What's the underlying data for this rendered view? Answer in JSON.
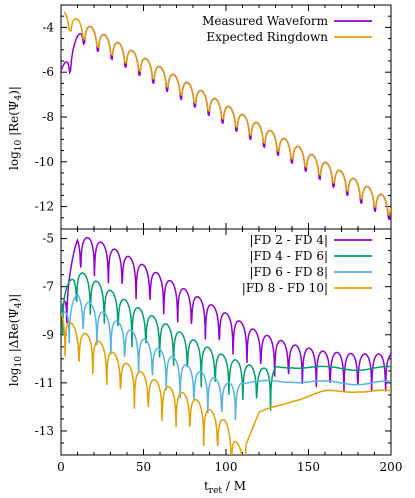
{
  "chart_data": [
    {
      "type": "line",
      "panel": "top",
      "ylabel": "log10 |Re(Ψ4)|",
      "xlim": [
        0,
        200
      ],
      "ylim": [
        -13,
        -3
      ],
      "yticks": [
        -12,
        -10,
        -8,
        -6,
        -4
      ],
      "xticks": [
        0,
        50,
        100,
        150,
        200
      ],
      "legend_position": "top-right",
      "series": [
        {
          "name": "Measured Waveform",
          "color": "#9400d3",
          "start": [
            0,
            -5.9
          ],
          "peak": [
            14,
            -3.8
          ],
          "decay_per_M": 0.0425,
          "half_period_M": 8.4,
          "first_zero_M": 5.5,
          "end": [
            200,
            -11.8
          ]
        },
        {
          "name": "Expected Ringdown",
          "color": "#e69f00",
          "start": [
            2,
            -3.0
          ],
          "decay_per_M": 0.0425,
          "half_period_M": 8.4,
          "first_zero_M": 5.5,
          "end": [
            200,
            -11.8
          ]
        }
      ]
    },
    {
      "type": "line",
      "panel": "bottom",
      "xlabel": "t_ret / M",
      "ylabel": "log10 |ΔRe(Ψ4)|",
      "xlim": [
        0,
        200
      ],
      "ylim": [
        -14,
        -4.6
      ],
      "yticks": [
        -13,
        -11,
        -9,
        -7,
        -5
      ],
      "xticks": [
        0,
        50,
        100,
        150,
        200
      ],
      "legend_position": "top-right",
      "series": [
        {
          "name": "|FD 2 - FD 4|",
          "color": "#9400d3",
          "points": [
            [
              0,
              -8.0
            ],
            [
              10,
              -4.9
            ],
            [
              20,
              -5.0
            ],
            [
              40,
              -5.7
            ],
            [
              60,
              -6.5
            ],
            [
              80,
              -7.3
            ],
            [
              100,
              -8.1
            ],
            [
              120,
              -8.9
            ],
            [
              140,
              -9.4
            ],
            [
              160,
              -9.7
            ],
            [
              180,
              -9.8
            ],
            [
              200,
              -9.8
            ]
          ]
        },
        {
          "name": "|FD 4 - FD 6|",
          "color": "#009e73",
          "points": [
            [
              0,
              -7.3
            ],
            [
              10,
              -6.3
            ],
            [
              20,
              -6.7
            ],
            [
              40,
              -7.6
            ],
            [
              60,
              -8.4
            ],
            [
              80,
              -9.2
            ],
            [
              100,
              -9.9
            ],
            [
              120,
              -10.4
            ],
            [
              140,
              -10.3
            ],
            [
              160,
              -10.4
            ],
            [
              180,
              -10.4
            ],
            [
              200,
              -10.4
            ]
          ]
        },
        {
          "name": "|FD 6 - FD 8|",
          "color": "#56b4e9",
          "points": [
            [
              0,
              -8.2
            ],
            [
              10,
              -7.3
            ],
            [
              20,
              -7.8
            ],
            [
              40,
              -8.7
            ],
            [
              60,
              -9.6
            ],
            [
              80,
              -10.4
            ],
            [
              100,
              -11.0
            ],
            [
              120,
              -11.0
            ],
            [
              140,
              -10.9
            ],
            [
              160,
              -11.0
            ],
            [
              180,
              -11.0
            ],
            [
              200,
              -11.0
            ]
          ]
        },
        {
          "name": "|FD 8 - FD 10|",
          "color": "#e69f00",
          "points": [
            [
              0,
              -8.0
            ],
            [
              10,
              -8.8
            ],
            [
              20,
              -9.1
            ],
            [
              40,
              -10.2
            ],
            [
              60,
              -11.0
            ],
            [
              80,
              -11.6
            ],
            [
              100,
              -12.6
            ],
            [
              110,
              -13.9
            ],
            [
              120,
              -12.3
            ],
            [
              140,
              -11.7
            ],
            [
              160,
              -11.4
            ],
            [
              180,
              -11.3
            ],
            [
              200,
              -11.4
            ]
          ]
        }
      ]
    }
  ],
  "labels": {
    "top_ylabel_prefix": "log",
    "top_ylabel_sub": "10",
    "top_ylabel_body": " |Re(Ψ",
    "top_ylabel_sub2": "4",
    "top_ylabel_suffix": ")|",
    "bottom_ylabel_prefix": "log",
    "bottom_ylabel_sub": "10",
    "bottom_ylabel_body": " |ΔRe(Ψ",
    "bottom_ylabel_sub2": "4",
    "bottom_ylabel_suffix": ")|",
    "xlabel_main": "t",
    "xlabel_sub": "ret",
    "xlabel_suffix": " / M"
  }
}
